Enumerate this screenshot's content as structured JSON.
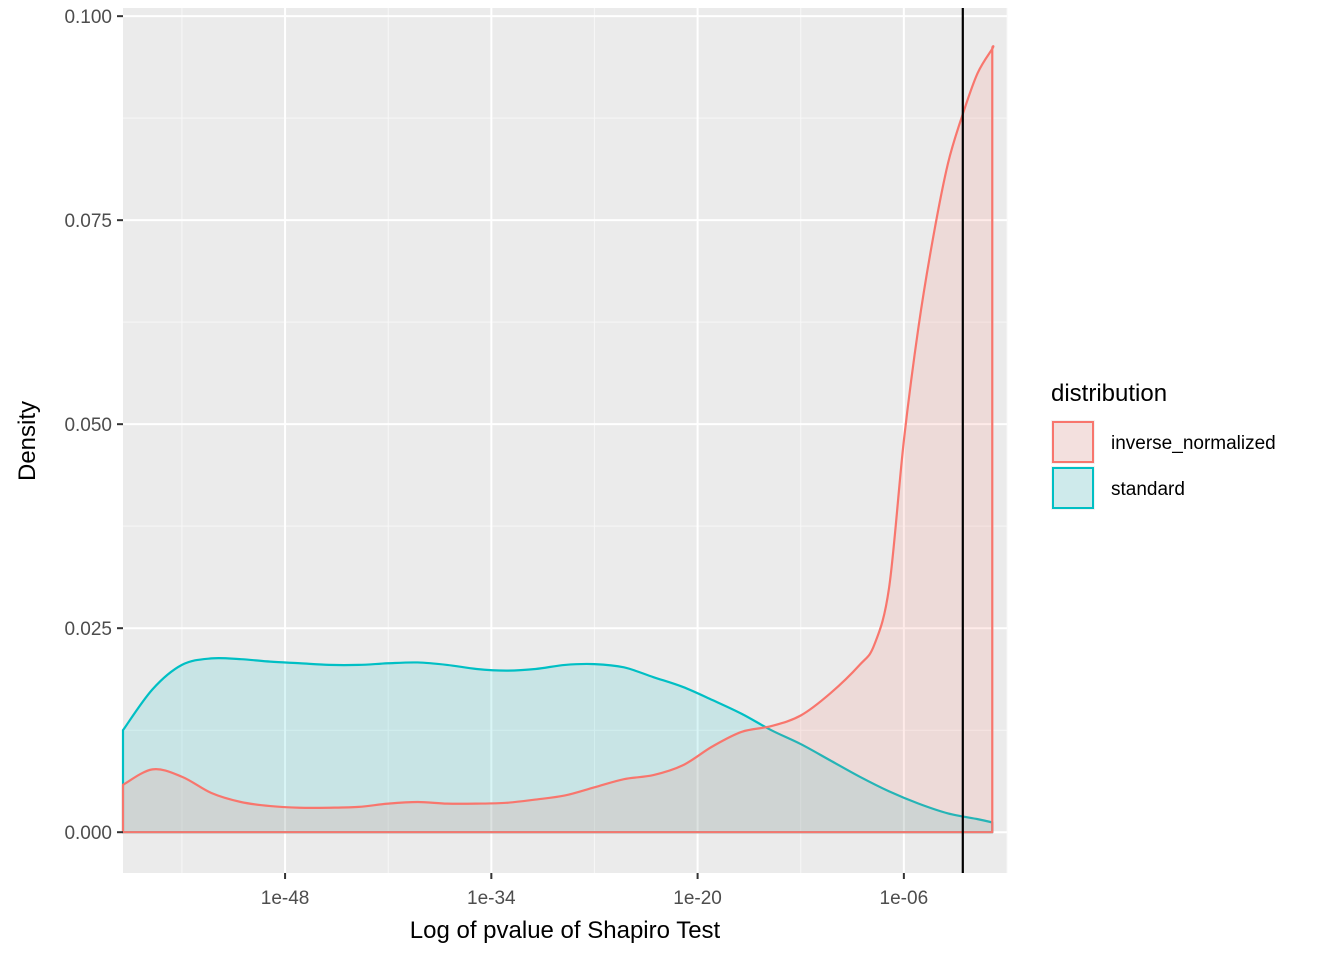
{
  "chart_data": {
    "type": "area",
    "title": "",
    "xlabel": "Log of pvalue of Shapiro Test",
    "ylabel": "Density",
    "x_scale": "log10",
    "xlim": [
      "1e-59",
      "1e+01"
    ],
    "ylim": [
      -0.005,
      0.101
    ],
    "x_ticks": [
      "1e-48",
      "1e-34",
      "1e-20",
      "1e-06"
    ],
    "y_ticks": [
      "0.000",
      "0.025",
      "0.050",
      "0.075",
      "0.100"
    ],
    "y_tick_values": [
      0,
      0.025,
      0.05,
      0.075,
      0.1
    ],
    "grid": true,
    "legend": {
      "title": "distribution",
      "position": "right"
    },
    "vline": {
      "x": "1e-02",
      "color": "#000000"
    },
    "series": [
      {
        "name": "inverse_normalized",
        "color": "#F8766D",
        "fill_alpha": 0.15,
        "x": [
          "1e-59",
          "1e-57",
          "1e-55",
          "1e-53",
          "1e-51",
          "1e-49",
          "1e-47",
          "1e-45",
          "1e-43",
          "1e-41",
          "1e-39",
          "1e-37",
          "1e-35",
          "1e-33",
          "1e-31",
          "1e-29",
          "1e-27",
          "1e-25",
          "1e-23",
          "1e-21",
          "1e-19",
          "1e-17",
          "1e-15",
          "1e-13",
          "1e-11",
          "1e-9",
          "1e-8",
          "1e-7",
          "1e-6",
          "1e-5",
          "1e-4",
          "1e-3",
          "1e-2",
          "1e-1",
          "1e-0.3",
          "1e0.2",
          "1e0.5"
        ],
        "y": [
          0.0058,
          0.0077,
          0.0068,
          0.0048,
          0.0037,
          0.0032,
          0.003,
          0.003,
          0.0031,
          0.0035,
          0.0037,
          0.0035,
          0.0035,
          0.0036,
          0.004,
          0.0045,
          0.0055,
          0.0065,
          0.007,
          0.0082,
          0.0105,
          0.0123,
          0.013,
          0.0143,
          0.017,
          0.0205,
          0.023,
          0.03,
          0.048,
          0.062,
          0.073,
          0.082,
          0.088,
          0.093,
          0.096,
          0.096,
          0.094
        ]
      },
      {
        "name": "standard",
        "color": "#00BFC4",
        "fill_alpha": 0.15,
        "x": [
          "1e-59",
          "1e-57",
          "1e-55",
          "1e-53",
          "1e-51",
          "1e-49",
          "1e-47",
          "1e-45",
          "1e-43",
          "1e-41",
          "1e-39",
          "1e-37",
          "1e-35",
          "1e-33",
          "1e-31",
          "1e-29",
          "1e-27",
          "1e-25",
          "1e-23",
          "1e-21",
          "1e-19",
          "1e-17",
          "1e-15",
          "1e-13",
          "1e-11",
          "1e-9",
          "1e-7",
          "1e-5",
          "1e-3",
          "1e-1",
          "1e0.5"
        ],
        "y": [
          0.0125,
          0.0175,
          0.0205,
          0.0213,
          0.0212,
          0.0209,
          0.0207,
          0.0205,
          0.0205,
          0.0207,
          0.0208,
          0.0205,
          0.02,
          0.0198,
          0.02,
          0.0205,
          0.0206,
          0.0202,
          0.019,
          0.0178,
          0.0162,
          0.0145,
          0.0125,
          0.0108,
          0.0088,
          0.0068,
          0.005,
          0.0035,
          0.0023,
          0.0016,
          0.0012
        ]
      }
    ]
  }
}
